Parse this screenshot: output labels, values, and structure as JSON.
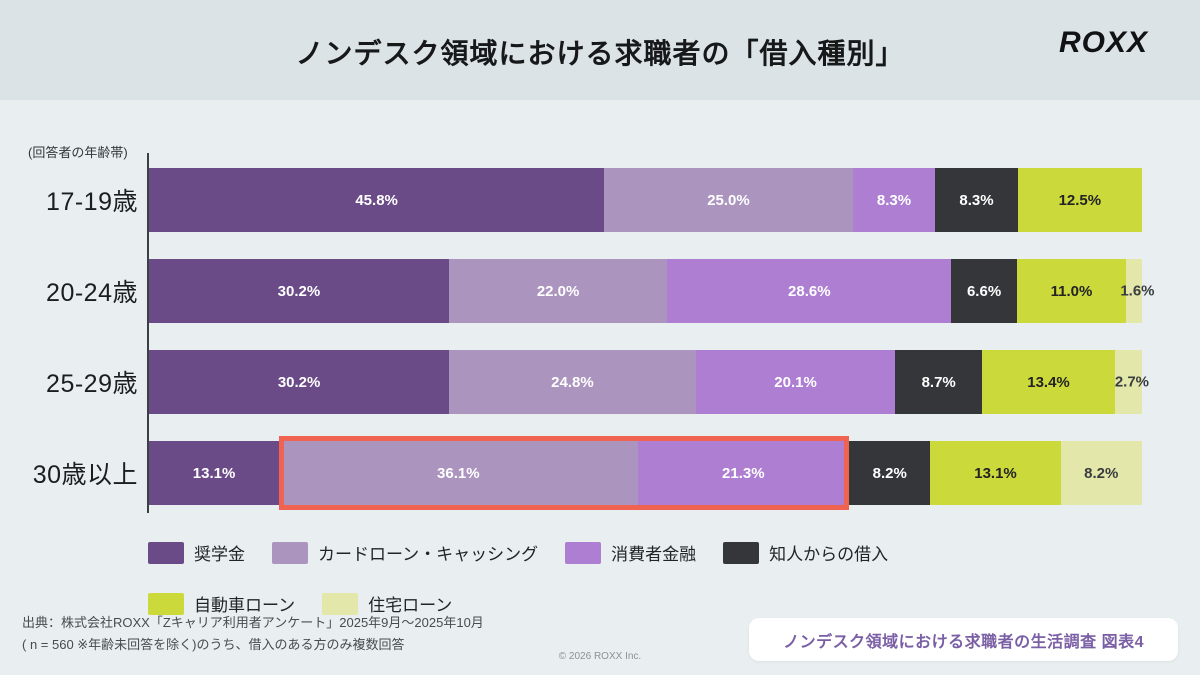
{
  "header": {
    "title": "ノンデスク領域における求職者の「借入種別」",
    "logo": "ROXX"
  },
  "chart_data": {
    "type": "bar",
    "orientation": "horizontal",
    "stacked": true,
    "value_suffix": "%",
    "axis_note": "(回答者の年齢帯)",
    "categories": [
      "17-19歳",
      "20-24歳",
      "25-29歳",
      "30歳以上"
    ],
    "series": [
      {
        "name": "奨学金",
        "color": "#6a4b88",
        "text_color": "#ffffff",
        "values": [
          45.8,
          30.2,
          30.2,
          13.1
        ]
      },
      {
        "name": "カードローン・キャッシング",
        "color": "#ab95bf",
        "text_color": "#ffffff",
        "values": [
          25.0,
          22.0,
          24.8,
          36.1
        ]
      },
      {
        "name": "消費者金融",
        "color": "#ad7ed2",
        "text_color": "#ffffff",
        "values": [
          8.3,
          28.6,
          20.1,
          21.3
        ]
      },
      {
        "name": "知人からの借入",
        "color": "#35363a",
        "text_color": "#ffffff",
        "values": [
          8.3,
          6.6,
          8.7,
          8.2
        ]
      },
      {
        "name": "自動車ローン",
        "color": "#ccd93b",
        "text_color": "#232323",
        "values": [
          12.5,
          11.0,
          13.4,
          13.1
        ]
      },
      {
        "name": "住宅ローン",
        "color": "#e3e7a9",
        "text_color": "#3a3d40",
        "values": [
          0,
          1.6,
          2.7,
          8.2
        ]
      }
    ],
    "highlight": {
      "category": "30歳以上",
      "row_index": 3,
      "series_start": 1,
      "series_end": 2,
      "color": "#ef6350"
    }
  },
  "footer": {
    "source_line1": "出典：株式会社ROXX「Zキャリア利用者アンケート」2025年9月〜2025年10月",
    "source_line2": "( n = 560 ※年齢未回答を除く)のうち、借入のある方のみ複数回答",
    "copyright": "© 2026 ROXX Inc.",
    "badge": "ノンデスク領域における求職者の生活調査 図表4"
  }
}
